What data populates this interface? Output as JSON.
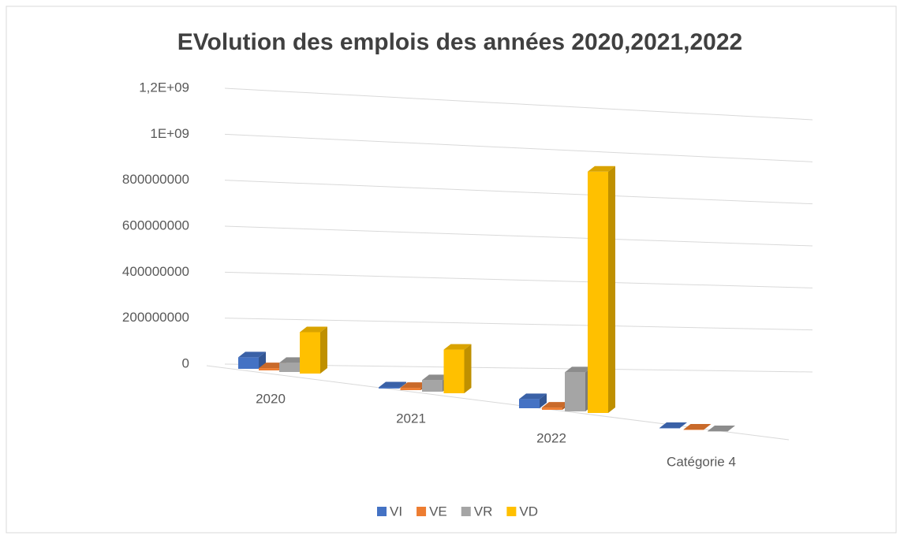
{
  "chart_data": {
    "type": "bar3d",
    "title": "EVolution des emplois  des années 2020,2021,2022",
    "categories": [
      "2020",
      "2021",
      "2022",
      "Catégorie 4"
    ],
    "series": [
      {
        "name": "VI",
        "color": "#4472c4",
        "values": [
          50000000,
          5000000,
          40000000,
          0
        ]
      },
      {
        "name": "VE",
        "color": "#ed7d31",
        "values": [
          10000000,
          10000000,
          10000000,
          0
        ]
      },
      {
        "name": "VR",
        "color": "#a5a5a5",
        "values": [
          40000000,
          50000000,
          170000000,
          0
        ]
      },
      {
        "name": "VD",
        "color": "#ffc000",
        "values": [
          180000000,
          190000000,
          1050000000,
          null
        ]
      }
    ],
    "ylim": [
      0,
      1200000000
    ],
    "yticks": [
      0,
      200000000,
      400000000,
      600000000,
      800000000,
      {
        "value": 1000000000,
        "label": "1E+09"
      },
      {
        "value": 1200000000,
        "label": "1,2E+09"
      }
    ],
    "grid": true,
    "legend": "bottom"
  }
}
